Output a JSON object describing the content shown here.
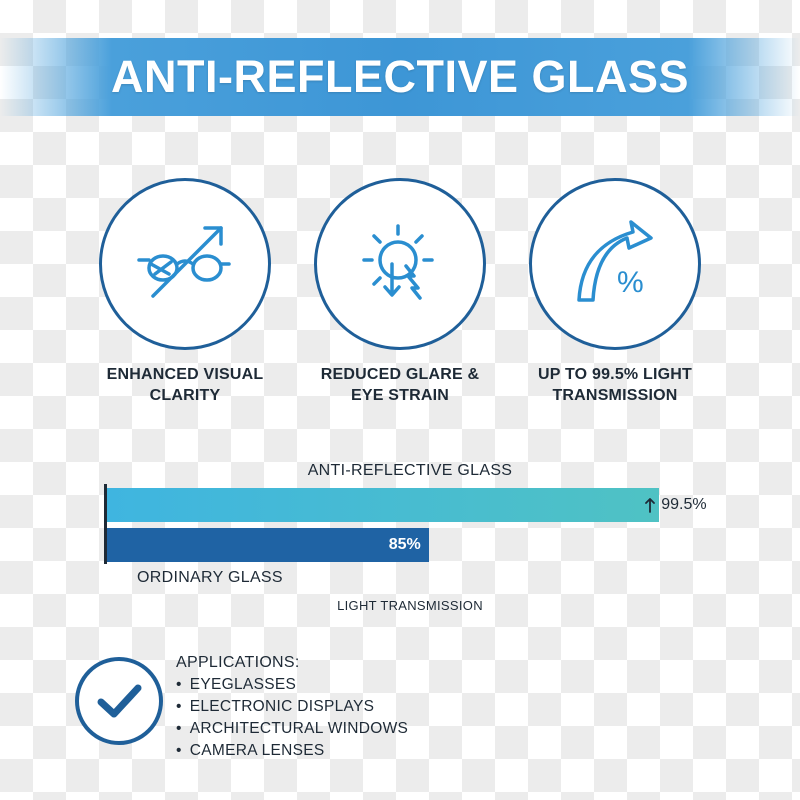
{
  "title": "ANTI-REFLECTIVE GLASS",
  "colors": {
    "accent": "#1f5f99",
    "banner": "#3d96d6",
    "bar_ar": "#3fb5e0",
    "bar_ordinary": "#1f63a4"
  },
  "features": [
    {
      "icon": "glasses-arrow-icon",
      "label": "ENHANCED VISUAL\nCLARITY"
    },
    {
      "icon": "sun-glare-arrow-icon",
      "label": "REDUCED GLARE &\nEYE STRAIN"
    },
    {
      "icon": "percent-arrow-icon",
      "label": "UP TO 99.5% LIGHT\nTRANSMISSION"
    }
  ],
  "chart_data": {
    "type": "bar",
    "orientation": "horizontal",
    "title": "ANTI-REFLECTIVE GLASS",
    "xlabel": "LIGHT TRANSMISSION",
    "categories": [
      "ANTI-REFLECTIVE GLASS",
      "ORDINARY GLASS"
    ],
    "values": [
      99.5,
      85
    ],
    "value_labels": [
      "99.5%",
      "85%"
    ],
    "unit": "%"
  },
  "applications": {
    "title": "APPLICATIONS:",
    "items": [
      "EYEGLASSES",
      "ELECTRONIC DISPLAYS",
      "ARCHITECTURAL WINDOWS",
      "CAMERA LENSES"
    ]
  }
}
